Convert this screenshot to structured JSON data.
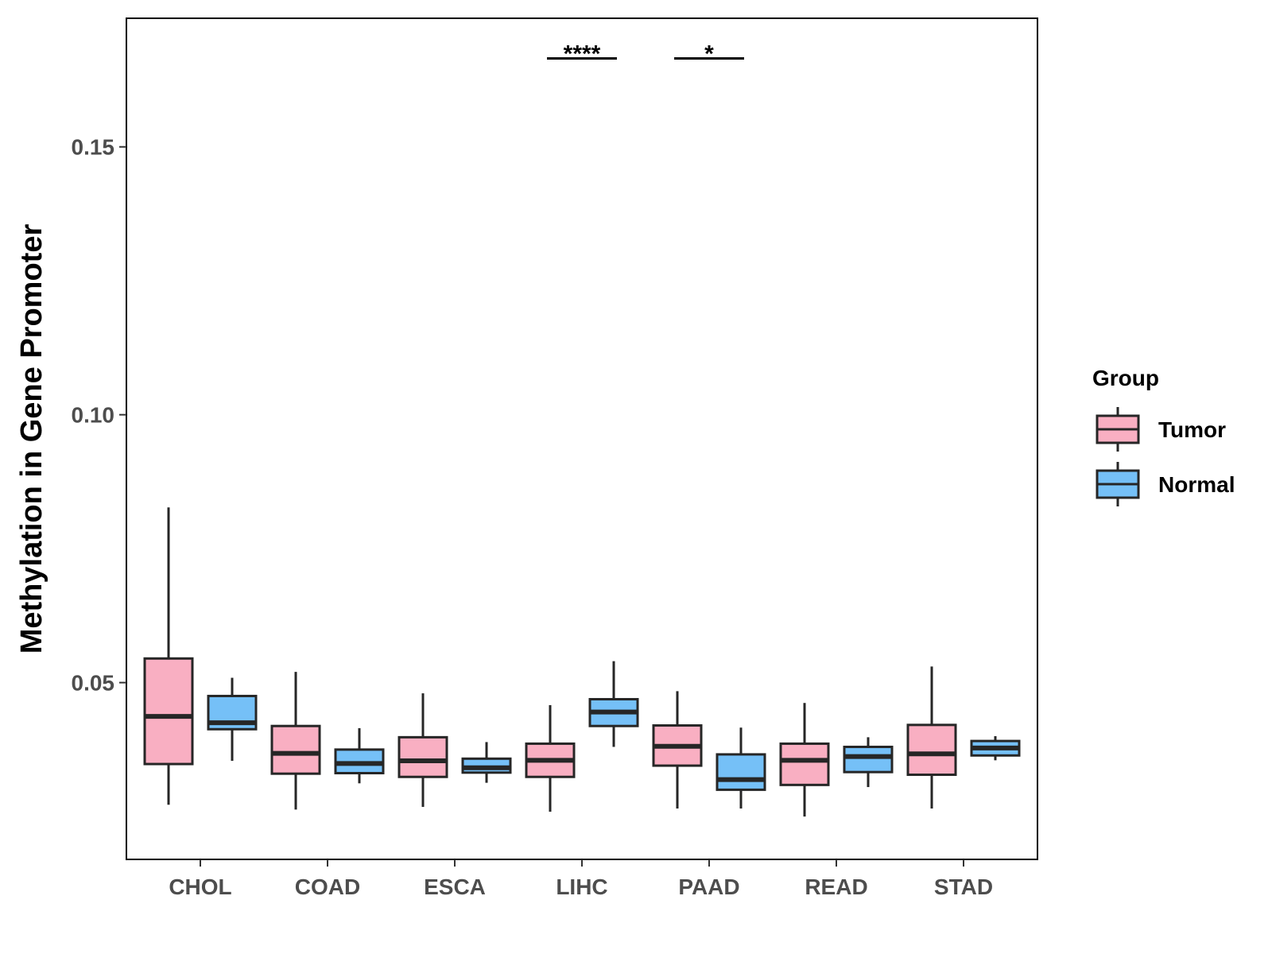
{
  "chart_data": {
    "type": "boxplot",
    "title": "",
    "xlabel": "",
    "ylabel": "Methylation in Gene Promoter",
    "ylim": [
      0.017,
      0.174
    ],
    "yticks": [
      0.05,
      0.1,
      0.15
    ],
    "ytick_labels": [
      "0.05",
      "0.10",
      "0.15"
    ],
    "categories": [
      "CHOL",
      "COAD",
      "ESCA",
      "LIHC",
      "PAAD",
      "READ",
      "STAD"
    ],
    "legend": {
      "title": "Group",
      "position": "right",
      "entries": [
        {
          "name": "Tumor",
          "color": "#F9AFC2"
        },
        {
          "name": "Normal",
          "color": "#75C0F7"
        }
      ]
    },
    "series": [
      {
        "name": "Tumor",
        "color": "#F9AFC2",
        "boxes": [
          {
            "category": "CHOL",
            "whisker_low": 0.0272,
            "q1": 0.0348,
            "median": 0.0437,
            "q3": 0.0545,
            "whisker_high": 0.0827
          },
          {
            "category": "COAD",
            "whisker_low": 0.0263,
            "q1": 0.033,
            "median": 0.0368,
            "q3": 0.0419,
            "whisker_high": 0.052
          },
          {
            "category": "ESCA",
            "whisker_low": 0.0268,
            "q1": 0.0324,
            "median": 0.0354,
            "q3": 0.0398,
            "whisker_high": 0.048
          },
          {
            "category": "LIHC",
            "whisker_low": 0.0259,
            "q1": 0.0324,
            "median": 0.0355,
            "q3": 0.0386,
            "whisker_high": 0.0458
          },
          {
            "category": "PAAD",
            "whisker_low": 0.0265,
            "q1": 0.0345,
            "median": 0.0381,
            "q3": 0.042,
            "whisker_high": 0.0484
          },
          {
            "category": "READ",
            "whisker_low": 0.025,
            "q1": 0.0309,
            "median": 0.0355,
            "q3": 0.0386,
            "whisker_high": 0.0462
          },
          {
            "category": "STAD",
            "whisker_low": 0.0265,
            "q1": 0.0328,
            "median": 0.0367,
            "q3": 0.0421,
            "whisker_high": 0.053
          }
        ]
      },
      {
        "name": "Normal",
        "color": "#75C0F7",
        "boxes": [
          {
            "category": "CHOL",
            "whisker_low": 0.0354,
            "q1": 0.0413,
            "median": 0.0425,
            "q3": 0.0475,
            "whisker_high": 0.0509
          },
          {
            "category": "COAD",
            "whisker_low": 0.0312,
            "q1": 0.0331,
            "median": 0.0349,
            "q3": 0.0375,
            "whisker_high": 0.0415
          },
          {
            "category": "ESCA",
            "whisker_low": 0.0313,
            "q1": 0.0332,
            "median": 0.0341,
            "q3": 0.0358,
            "whisker_high": 0.0389
          },
          {
            "category": "LIHC",
            "whisker_low": 0.038,
            "q1": 0.0419,
            "median": 0.0445,
            "q3": 0.0469,
            "whisker_high": 0.054
          },
          {
            "category": "PAAD",
            "whisker_low": 0.0265,
            "q1": 0.03,
            "median": 0.0319,
            "q3": 0.0366,
            "whisker_high": 0.0416
          },
          {
            "category": "READ",
            "whisker_low": 0.0305,
            "q1": 0.0333,
            "median": 0.0362,
            "q3": 0.038,
            "whisker_high": 0.0398
          },
          {
            "category": "STAD",
            "whisker_low": 0.0355,
            "q1": 0.0364,
            "median": 0.0378,
            "q3": 0.0391,
            "whisker_high": 0.04
          }
        ]
      }
    ],
    "annotations": [
      {
        "category": "LIHC",
        "label": "****",
        "y": 0.1665
      },
      {
        "category": "PAAD",
        "label": "*",
        "y": 0.1665
      }
    ]
  }
}
